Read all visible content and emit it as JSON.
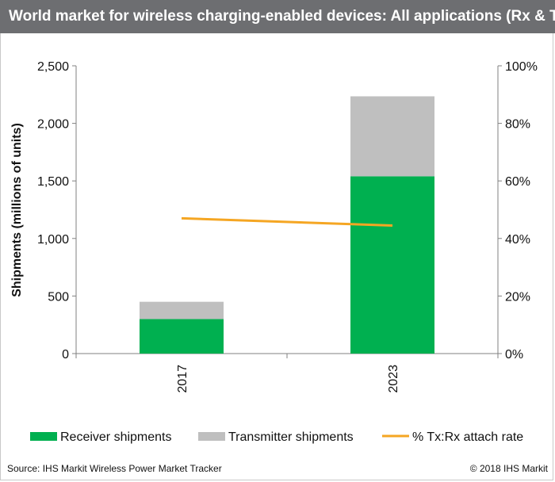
{
  "header": {
    "title": "World market for wireless charging-enabled devices: All applications (Rx & Tx)"
  },
  "footer": {
    "source": "Source: IHS Markit Wireless Power Market Tracker",
    "copyright": "© 2018 IHS Markit"
  },
  "colors": {
    "receiver": "#00b050",
    "transmitter": "#bfbfbf",
    "attach_rate": "#f5a623",
    "title_bar": "#6d6e71"
  },
  "chart_data": {
    "type": "bar",
    "stacked": true,
    "categories": [
      "2017",
      "2023"
    ],
    "series": [
      {
        "name": "Receiver shipments",
        "values": [
          300,
          1540
        ],
        "axis": "left"
      },
      {
        "name": "Transmitter shipments",
        "values": [
          150,
          695
        ],
        "axis": "left"
      },
      {
        "name": "% Tx:Rx attach rate",
        "type": "line",
        "values": [
          47,
          44.5
        ],
        "axis": "right"
      }
    ],
    "ylabel": "Shipments (millions of units)",
    "ylim": [
      0,
      2500
    ],
    "yticks": [
      "0",
      "500",
      "1,000",
      "1,500",
      "2,000",
      "2,500"
    ],
    "y2lim": [
      0,
      100
    ],
    "y2ticks": [
      "0%",
      "20%",
      "40%",
      "60%",
      "80%",
      "100%"
    ],
    "legend_position": "bottom",
    "grid": false
  }
}
